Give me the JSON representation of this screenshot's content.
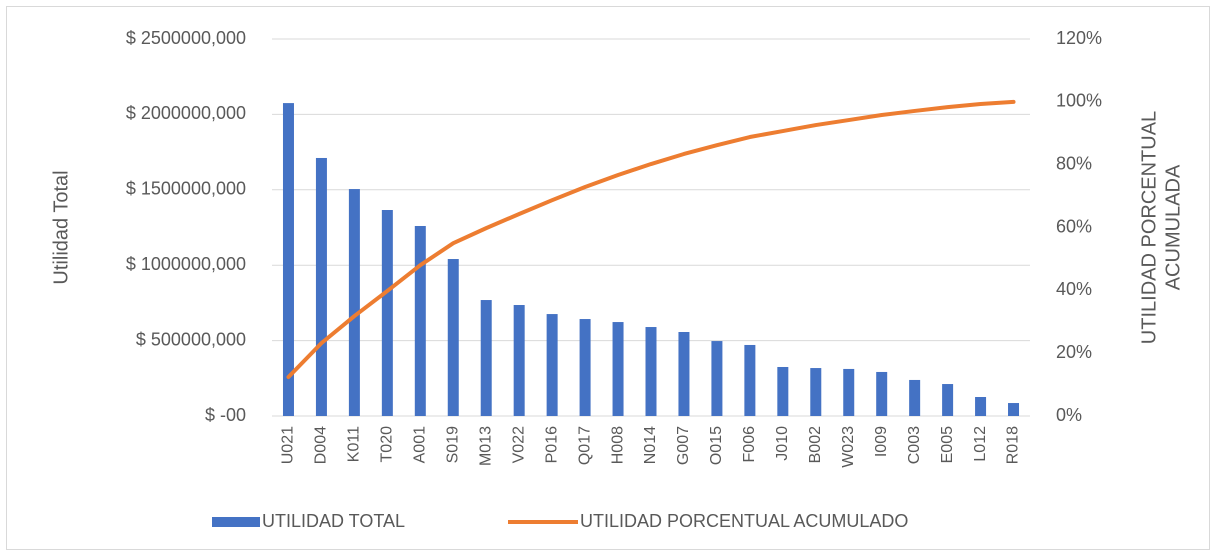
{
  "chart_data": {
    "type": "pareto",
    "categories": [
      "U021",
      "D004",
      "K011",
      "T020",
      "A001",
      "S019",
      "M013",
      "V022",
      "P016",
      "Q017",
      "H008",
      "N014",
      "G007",
      "O015",
      "F006",
      "J010",
      "B002",
      "W023",
      "I009",
      "C003",
      "E005",
      "L012",
      "R018"
    ],
    "series": [
      {
        "name": "UTILIDAD TOTAL",
        "type": "bar",
        "color": "#4472c4",
        "values": [
          2075000,
          1711000,
          1505000,
          1366000,
          1260000,
          1041000,
          769000,
          736000,
          676000,
          643000,
          623000,
          590000,
          557000,
          497000,
          471000,
          325000,
          318000,
          312000,
          292000,
          239000,
          212000,
          126000,
          86000
        ]
      },
      {
        "name": "UTILIDAD PORCENTUAL ACUMULADO",
        "type": "line",
        "axis": "y2",
        "color": "#ed7d31",
        "values": [
          12.4,
          23.2,
          31.8,
          39.8,
          48,
          55,
          59.8,
          64.3,
          68.7,
          72.9,
          76.7,
          80.2,
          83.4,
          86.2,
          88.8,
          90.7,
          92.6,
          94.2,
          95.8,
          97.1,
          98.3,
          99.3,
          100
        ]
      }
    ],
    "ylabel": "Utilidad Total",
    "y2label": [
      "UTILIDAD PORCENTUAL",
      "ACUMULADA"
    ],
    "ylim": [
      0,
      2500000
    ],
    "yticks": [
      {
        "value": 0,
        "label": "$ -00"
      },
      {
        "value": 500000,
        "label": "$ 500000,000"
      },
      {
        "value": 1000000,
        "label": "$ 1000000,000"
      },
      {
        "value": 1500000,
        "label": "$ 1500000,000"
      },
      {
        "value": 2000000,
        "label": "$ 2000000,000"
      },
      {
        "value": 2500000,
        "label": "$ 2500000,000"
      }
    ],
    "y2lim": [
      0,
      120
    ],
    "y2ticks": [
      {
        "value": 0,
        "label": "0%"
      },
      {
        "value": 20,
        "label": "20%"
      },
      {
        "value": 40,
        "label": "40%"
      },
      {
        "value": 60,
        "label": "60%"
      },
      {
        "value": 80,
        "label": "80%"
      },
      {
        "value": 100,
        "label": "100%"
      },
      {
        "value": 120,
        "label": "120%"
      }
    ],
    "grid": true,
    "legend": "bottom"
  }
}
